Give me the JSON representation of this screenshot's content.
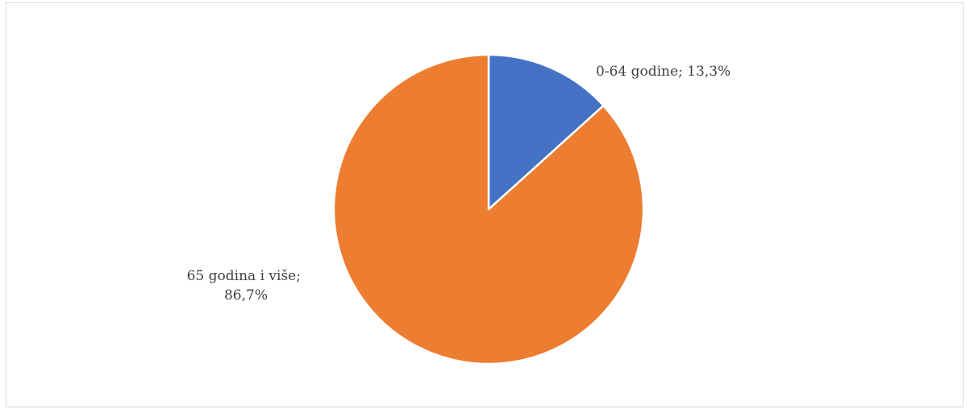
{
  "chart_data": {
    "type": "pie",
    "title": "",
    "series": [
      {
        "values": [
          13.3,
          86.7
        ]
      }
    ],
    "categories": [
      "0-64 godine",
      "65 godina i više"
    ],
    "slices": [
      {
        "label": "0-64 godine",
        "value": 13.3,
        "color": "#4472C4"
      },
      {
        "label": "65 godina i više",
        "value": 86.7,
        "color": "#ED7D31"
      }
    ],
    "data_labels": [
      {
        "line1": "0-64 godine; 13,3%",
        "line2": ""
      },
      {
        "line1": "65 godina i više;",
        "line2": "86,7%"
      }
    ],
    "start_angle_deg": 0,
    "direction": "clockwise",
    "legend": "none",
    "slice_border_color": "#ffffff"
  }
}
